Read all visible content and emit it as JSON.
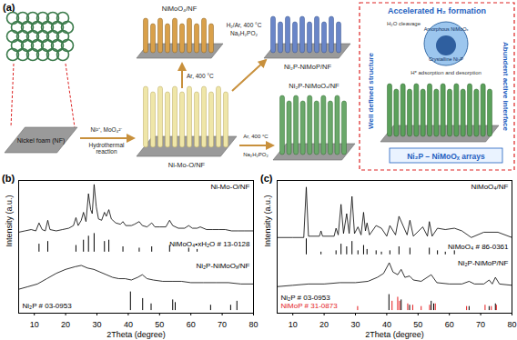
{
  "panel_a": {
    "label": "(a)",
    "substrate": "Nickel foam (NF)",
    "hydrothermal": {
      "reagents": "Ni²⁺, MoO₄²⁻",
      "process": "Hydrothermal reaction"
    },
    "precursor": "Ni-Mo-O/NF",
    "oxide": {
      "name": "NiMoO₄/NF",
      "condition": "Ar, 400 °C"
    },
    "phosphide_h2": {
      "name": "Ni₂P-NiMoP/NF",
      "condition": "H₂/Ar, 400 °C",
      "reagent": "Na₂H₂PO₂"
    },
    "phosphide_ar": {
      "name": "Ni₂P-NiMoOₓ/NF",
      "condition": "Ar, 400 °C",
      "reagent": "Na₂H₂PO₂"
    },
    "inset": {
      "title": "Accelerated H₂ formation",
      "left": "Well defined structure",
      "right": "Abundent active interface",
      "shell": "Amorphous NiMoOₓ",
      "core": "Crystalline Ni₂P",
      "step1": "H₂O cleavage",
      "step2": "H* adsorption and desorption",
      "caption": "Ni₂P – NiMoOₓ arrays"
    }
  },
  "chart_data": [
    {
      "title": "(b)",
      "type": "line",
      "x_label": "2Theta (degree)",
      "y_label": "Intensity (a.u.)",
      "xlim": [
        5,
        80
      ],
      "xticks": [
        10,
        20,
        30,
        40,
        50,
        60,
        70,
        80
      ],
      "ylim": [
        0,
        100
      ],
      "tick_labels": "x",
      "series": [
        {
          "name": "Ni-Mo-O/NF",
          "type": "line",
          "color": "#000000",
          "x": [
            5,
            7,
            9,
            10.5,
            11.5,
            12.5,
            13.5,
            14.3,
            15,
            17,
            19,
            21,
            22.5,
            23.3,
            24,
            25,
            25.7,
            26.5,
            27.3,
            28,
            28.5,
            29.1,
            29.8,
            30.5,
            31.5,
            32.4,
            33,
            33.8,
            34.6,
            36,
            37.5,
            38.3,
            39.2,
            41,
            42,
            43.5,
            44.5,
            46,
            47.5,
            48.5,
            50,
            52,
            53.2,
            54.2,
            56,
            58,
            59.3,
            60.5,
            62,
            63,
            65,
            67,
            69,
            71,
            73,
            75,
            77,
            80
          ],
          "values": [
            61,
            62,
            63,
            62,
            68,
            63,
            62,
            70,
            63,
            62,
            63,
            64,
            66,
            72,
            66,
            70,
            76,
            69,
            90,
            78,
            75,
            97,
            80,
            71,
            70,
            76,
            73,
            78,
            71,
            68,
            67,
            69,
            66,
            66,
            67,
            69,
            66,
            65,
            68,
            65,
            65,
            65,
            70,
            66,
            64,
            64,
            66,
            64,
            64,
            65,
            63,
            63,
            63,
            63,
            62,
            62,
            62,
            62
          ]
        },
        {
          "name": "NiMoO₄•xH₂O # 13-0128",
          "type": "stick",
          "color": "#000000",
          "baseline": 46,
          "x": [
            11.5,
            14.3,
            23.3,
            25.7,
            27.3,
            29.1,
            32.4,
            33.8,
            38.3,
            43.5,
            47.5,
            53.2,
            59.3,
            62
          ],
          "values": [
            52,
            54,
            51,
            55,
            58,
            60,
            54,
            55,
            50,
            49,
            50,
            51,
            49,
            48
          ]
        },
        {
          "name": "Ni₂P-NiMoOₓ/NF",
          "type": "line",
          "color": "#000000",
          "x": [
            5,
            8,
            11,
            14,
            17,
            20,
            23,
            25,
            27,
            29,
            31,
            33,
            35,
            37,
            39,
            41,
            43,
            44.5,
            46,
            48,
            51,
            54,
            57,
            60,
            64,
            68,
            72,
            76,
            80
          ],
          "values": [
            18,
            20,
            22,
            26,
            30,
            33,
            35,
            36,
            34,
            33,
            31,
            29,
            27,
            26,
            26,
            25,
            27,
            29,
            26,
            25,
            24,
            24,
            24,
            23,
            23,
            23,
            23,
            22,
            22
          ]
        },
        {
          "name": "Ni₂P # 03-0953",
          "type": "stick",
          "color": "#000000",
          "baseline": 2,
          "x": [
            40.7,
            44.6,
            47.3,
            54.2,
            55,
            66.3,
            72.7,
            74.7
          ],
          "values": [
            16,
            11,
            7,
            10,
            8,
            6,
            6,
            9
          ]
        }
      ]
    },
    {
      "title": "(c)",
      "type": "line",
      "x_label": "2Theta (degree)",
      "y_label": "Intensity (a.u.)",
      "xlim": [
        5,
        80
      ],
      "xticks": [
        10,
        20,
        30,
        40,
        50,
        60,
        70,
        80
      ],
      "ylim": [
        0,
        100
      ],
      "tick_labels": "x",
      "series": [
        {
          "name": "NiMoO₄/NF",
          "type": "line",
          "color": "#000000",
          "x": [
            5,
            10,
            13.5,
            14.3,
            15,
            18.5,
            19,
            19.5,
            23.2,
            23.8,
            24.5,
            25.4,
            26.2,
            27.2,
            28,
            28.9,
            29.7,
            30.8,
            31.8,
            32.6,
            33.2,
            33.7,
            34.5,
            36.6,
            38.3,
            40,
            41,
            42.8,
            43.9,
            45.2,
            46.5,
            47.4,
            48.5,
            51.5,
            53,
            53.6,
            54.5,
            56.2,
            58.7,
            61.6,
            64,
            67,
            71,
            75.5,
            80
          ],
          "values": [
            57,
            57,
            57,
            95,
            58,
            58,
            62,
            58,
            58,
            64,
            59,
            82,
            60,
            75,
            60,
            88,
            60,
            65,
            59,
            76,
            62,
            68,
            59,
            66,
            64,
            58,
            66,
            59,
            73,
            66,
            59,
            70,
            58,
            65,
            58,
            69,
            58,
            64,
            63,
            64,
            62,
            57,
            61,
            61,
            57
          ]
        },
        {
          "name": "NiMoO₄ # 86-0361",
          "type": "stick",
          "color": "#000000",
          "baseline": 44,
          "x": [
            14.3,
            19,
            23.8,
            25.4,
            27.2,
            28.9,
            30.8,
            32.6,
            33.7,
            36.6,
            38.3,
            41,
            43.9,
            47.4,
            53.6,
            56.2,
            58.7,
            61.6
          ],
          "values": [
            56,
            46,
            47,
            52,
            50,
            54,
            47,
            51,
            48,
            47,
            46,
            47,
            50,
            49,
            49,
            47,
            46,
            47
          ]
        },
        {
          "name": "Ni₂P-NiMoP/NF",
          "type": "line",
          "color": "#000000",
          "x": [
            5,
            10,
            15,
            20,
            25,
            30,
            34,
            37,
            39,
            40.8,
            42,
            43.5,
            44.6,
            45.8,
            47.3,
            48.5,
            51,
            54.2,
            56,
            60,
            64,
            66.3,
            68,
            71,
            72.7,
            73.7,
            74.7,
            76,
            80
          ],
          "values": [
            20,
            21,
            22,
            22,
            23,
            23,
            24,
            27,
            30,
            38,
            31,
            29,
            33,
            27,
            28,
            25,
            24,
            29,
            23,
            22,
            22,
            24,
            22,
            22,
            25,
            22,
            27,
            22,
            21
          ]
        },
        {
          "name": "Ni₂P # 03-0953",
          "type": "stick",
          "color": "#000000",
          "baseline": 2,
          "x": [
            40.7,
            44.6,
            47.3,
            54.2,
            55,
            66.3,
            72.7,
            74.7
          ],
          "values": [
            14,
            10,
            6,
            9,
            7,
            5,
            5,
            7
          ]
        },
        {
          "name": "NiMoP # 31-0873",
          "type": "stick",
          "color": "#e41a1c",
          "baseline": 2,
          "x": [
            30.7,
            41.7,
            43.5,
            44.1,
            46.7,
            48.3,
            51,
            53.7,
            55.5,
            65.5,
            71.4,
            73.4,
            75
          ],
          "values": [
            5,
            9,
            12,
            9,
            7,
            6,
            5,
            6,
            7,
            5,
            6,
            5,
            6
          ]
        }
      ]
    }
  ]
}
